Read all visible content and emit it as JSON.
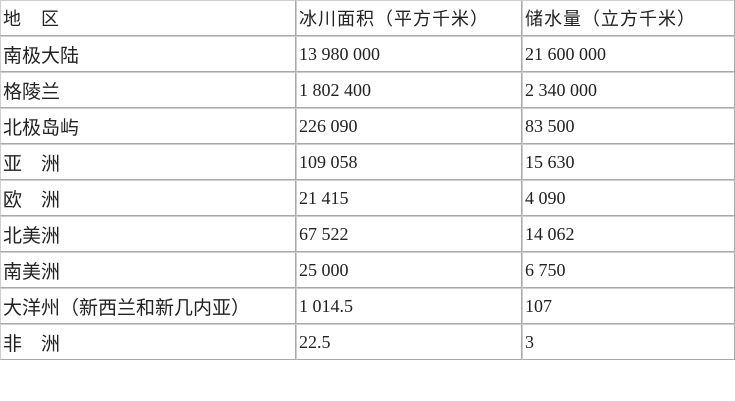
{
  "table": {
    "headers": [
      "地　区",
      "冰川面积（平方千米）",
      "储水量（立方千米）"
    ],
    "rows": [
      [
        "南极大陆",
        "13 980 000",
        "21 600 000"
      ],
      [
        "格陵兰",
        "1 802 400",
        "2 340 000"
      ],
      [
        "北极岛屿",
        "226 090",
        "83 500"
      ],
      [
        "亚　洲",
        "109 058",
        "15 630"
      ],
      [
        "欧　洲",
        "21 415",
        "4 090"
      ],
      [
        "北美洲",
        "67 522",
        "14 062"
      ],
      [
        "南美洲",
        "25 000",
        "6 750"
      ],
      [
        "大洋州（新西兰和新几内亚）",
        "1 014.5",
        "107"
      ],
      [
        "非　洲",
        "22.5",
        "3"
      ]
    ]
  }
}
